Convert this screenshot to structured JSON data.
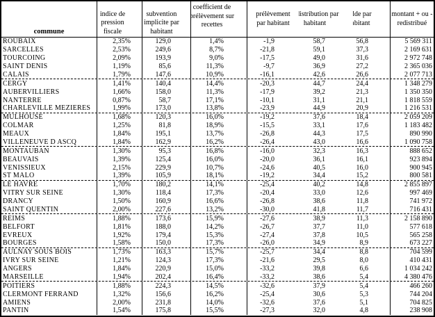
{
  "colors": {
    "border": "#000000",
    "background": "#ffffff",
    "text": "#000000"
  },
  "table": {
    "columns": [
      {
        "key": "commune",
        "label": "commune"
      },
      {
        "key": "indice",
        "label": "indice de\npression\nfiscale"
      },
      {
        "key": "subvention",
        "label": "subvention\nimplicite par\nhabitant"
      },
      {
        "key": "coefficient",
        "label": "coefficient de\nprélèvement sur\nrecettes"
      },
      {
        "key": "prelevement",
        "label": "prélèvement\npar habitant"
      },
      {
        "key": "redistribution",
        "label": "redistribution par\nhabitant"
      },
      {
        "key": "solde",
        "label": "solde par\nhabitant"
      },
      {
        "key": "montant",
        "label": "montant + ou -\nredistribué"
      }
    ],
    "rows": [
      {
        "commune": "ROUBAIX",
        "indice": "2,35%",
        "subvention": "129,0",
        "coefficient": "1,4%",
        "prelevement": "-1,9",
        "redistribution": "58,7",
        "solde": "56,8",
        "montant": "5 569 311",
        "group_end": false
      },
      {
        "commune": "SARCELLES",
        "indice": "2,53%",
        "subvention": "249,6",
        "coefficient": "8,7%",
        "prelevement": "-21,8",
        "redistribution": "59,1",
        "solde": "37,3",
        "montant": "2 169 631",
        "group_end": false
      },
      {
        "commune": "TOURCOING",
        "indice": "2,09%",
        "subvention": "193,9",
        "coefficient": "9,0%",
        "prelevement": "-17,5",
        "redistribution": "49,0",
        "solde": "31,6",
        "montant": "2 972 748",
        "group_end": false
      },
      {
        "commune": "SAINT DENIS",
        "indice": "1,19%",
        "subvention": "85,6",
        "coefficient": "11,3%",
        "prelevement": "-9,7",
        "redistribution": "36,9",
        "solde": "27,2",
        "montant": "2 365 036",
        "group_end": false
      },
      {
        "commune": "CALAIS",
        "indice": "1,79%",
        "subvention": "147,6",
        "coefficient": "10,9%",
        "prelevement": "-16,1",
        "redistribution": "42,6",
        "solde": "26,6",
        "montant": "2 077 713",
        "group_end": true
      },
      {
        "commune": "CERGY",
        "indice": "1,41%",
        "subvention": "140,4",
        "coefficient": "14,4%",
        "prelevement": "-20,3",
        "redistribution": "44,7",
        "solde": "24,4",
        "montant": "1 348 279",
        "group_end": false
      },
      {
        "commune": "AUBERVILLIERS",
        "indice": "1,66%",
        "subvention": "158,0",
        "coefficient": "11,3%",
        "prelevement": "-17,9",
        "redistribution": "39,2",
        "solde": "21,3",
        "montant": "1 350 350",
        "group_end": false
      },
      {
        "commune": "NANTERRE",
        "indice": "0,87%",
        "subvention": "58,7",
        "coefficient": "17,1%",
        "prelevement": "-10,1",
        "redistribution": "31,1",
        "solde": "21,1",
        "montant": "1 818 559",
        "group_end": false
      },
      {
        "commune": "CHARLEVILLE MEZIERES",
        "indice": "1,99%",
        "subvention": "173,0",
        "coefficient": "13,8%",
        "prelevement": "-23,9",
        "redistribution": "44,9",
        "solde": "20,9",
        "montant": "1 216 531",
        "group_end": true
      },
      {
        "commune": "MULHOUSE",
        "indice": "1,68%",
        "subvention": "120,3",
        "coefficient": "16,0%",
        "prelevement": "-19,2",
        "redistribution": "37,6",
        "solde": "18,4",
        "montant": "2 059 209",
        "group_end": false
      },
      {
        "commune": "COLMAR",
        "indice": "1,25%",
        "subvention": "81,8",
        "coefficient": "18,9%",
        "prelevement": "-15,5",
        "redistribution": "33,1",
        "solde": "17,6",
        "montant": "1 183 482",
        "group_end": false
      },
      {
        "commune": "MEAUX",
        "indice": "1,84%",
        "subvention": "195,1",
        "coefficient": "13,7%",
        "prelevement": "-26,8",
        "redistribution": "44,3",
        "solde": "17,5",
        "montant": "890 990",
        "group_end": false
      },
      {
        "commune": "VILLENEUVE D ASCQ",
        "indice": "1,84%",
        "subvention": "162,9",
        "coefficient": "16,2%",
        "prelevement": "-26,4",
        "redistribution": "43,0",
        "solde": "16,6",
        "montant": "1 090 758",
        "group_end": true
      },
      {
        "commune": "MONTAUBAN",
        "indice": "1,30%",
        "subvention": "95,3",
        "coefficient": "16,8%",
        "prelevement": "-16,0",
        "redistribution": "32,3",
        "solde": "16,3",
        "montant": "888 652",
        "group_end": false
      },
      {
        "commune": "BEAUVAIS",
        "indice": "1,39%",
        "subvention": "125,4",
        "coefficient": "16,0%",
        "prelevement": "-20,0",
        "redistribution": "36,1",
        "solde": "16,1",
        "montant": "923 894",
        "group_end": false
      },
      {
        "commune": "VENISSIEUX",
        "indice": "2,15%",
        "subvention": "229,9",
        "coefficient": "10,7%",
        "prelevement": "-24,6",
        "redistribution": "40,5",
        "solde": "16,0",
        "montant": "900 945",
        "group_end": false
      },
      {
        "commune": "ST MALO",
        "indice": "1,39%",
        "subvention": "105,9",
        "coefficient": "18,1%",
        "prelevement": "-19,2",
        "redistribution": "34,4",
        "solde": "15,2",
        "montant": "800 581",
        "group_end": true
      },
      {
        "commune": "LE HAVRE",
        "indice": "1,70%",
        "subvention": "180,2",
        "coefficient": "14,1%",
        "prelevement": "-25,4",
        "redistribution": "40,2",
        "solde": "14,8",
        "montant": "2 855 897",
        "group_end": false
      },
      {
        "commune": "VITRY SUR SEINE",
        "indice": "1,30%",
        "subvention": "118,4",
        "coefficient": "17,3%",
        "prelevement": "-20,4",
        "redistribution": "33,0",
        "solde": "12,6",
        "montant": "997 469",
        "group_end": false
      },
      {
        "commune": "DRANCY",
        "indice": "1,50%",
        "subvention": "160,9",
        "coefficient": "16,6%",
        "prelevement": "-26,8",
        "redistribution": "38,6",
        "solde": "11,8",
        "montant": "741 972",
        "group_end": false
      },
      {
        "commune": "SAINT QUENTIN",
        "indice": "2,00%",
        "subvention": "227,6",
        "coefficient": "13,2%",
        "prelevement": "-30,0",
        "redistribution": "41,8",
        "solde": "11,7",
        "montant": "716 431",
        "group_end": true
      },
      {
        "commune": "REIMS",
        "indice": "1,88%",
        "subvention": "173,6",
        "coefficient": "15,9%",
        "prelevement": "-27,6",
        "redistribution": "38,9",
        "solde": "11,3",
        "montant": "2 158 890",
        "group_end": false
      },
      {
        "commune": "BELFORT",
        "indice": "1,81%",
        "subvention": "188,0",
        "coefficient": "14,2%",
        "prelevement": "-26,7",
        "redistribution": "37,7",
        "solde": "11,0",
        "montant": "577 618",
        "group_end": false
      },
      {
        "commune": "EVREUX",
        "indice": "1,92%",
        "subvention": "179,4",
        "coefficient": "15,3%",
        "prelevement": "-27,4",
        "redistribution": "37,8",
        "solde": "10,5",
        "montant": "565 258",
        "group_end": false
      },
      {
        "commune": "BOURGES",
        "indice": "1,58%",
        "subvention": "150,0",
        "coefficient": "17,3%",
        "prelevement": "-26,0",
        "redistribution": "34,9",
        "solde": "8,9",
        "montant": "673 227",
        "group_end": true
      },
      {
        "commune": "AULNAY SOUS BOIS",
        "indice": "1,73%",
        "subvention": "163,3",
        "coefficient": "15,7%",
        "prelevement": "-25,7",
        "redistribution": "34,4",
        "solde": "8,8",
        "montant": "704 599",
        "group_end": false
      },
      {
        "commune": "IVRY SUR SEINE",
        "indice": "1,21%",
        "subvention": "124,3",
        "coefficient": "17,3%",
        "prelevement": "-21,6",
        "redistribution": "29,5",
        "solde": "8,0",
        "montant": "410 431",
        "group_end": false
      },
      {
        "commune": "ANGERS",
        "indice": "1,84%",
        "subvention": "220,9",
        "coefficient": "15,0%",
        "prelevement": "-33,2",
        "redistribution": "39,8",
        "solde": "6,6",
        "montant": "1 034 242",
        "group_end": false
      },
      {
        "commune": "MARSEILLE",
        "indice": "1,94%",
        "subvention": "202,4",
        "coefficient": "16,4%",
        "prelevement": "-33,2",
        "redistribution": "38,6",
        "solde": "5,4",
        "montant": "4 380 476",
        "group_end": true
      },
      {
        "commune": "POITIERS",
        "indice": "1,88%",
        "subvention": "224,3",
        "coefficient": "14,5%",
        "prelevement": "-32,6",
        "redistribution": "37,9",
        "solde": "5,4",
        "montant": "466 260",
        "group_end": false
      },
      {
        "commune": "CLERMONT FERRAND",
        "indice": "1,32%",
        "subvention": "156,6",
        "coefficient": "16,2%",
        "prelevement": "-25,4",
        "redistribution": "30,6",
        "solde": "5,3",
        "montant": "744 204",
        "group_end": false
      },
      {
        "commune": "AMIENS",
        "indice": "2,00%",
        "subvention": "231,8",
        "coefficient": "14,0%",
        "prelevement": "-32,6",
        "redistribution": "37,6",
        "solde": "5,1",
        "montant": "704 825",
        "group_end": false
      },
      {
        "commune": "PANTIN",
        "indice": "1,54%",
        "subvention": "175,8",
        "coefficient": "15,5%",
        "prelevement": "-27,3",
        "redistribution": "32,0",
        "solde": "4,8",
        "montant": "238 908",
        "group_end": false
      }
    ]
  }
}
